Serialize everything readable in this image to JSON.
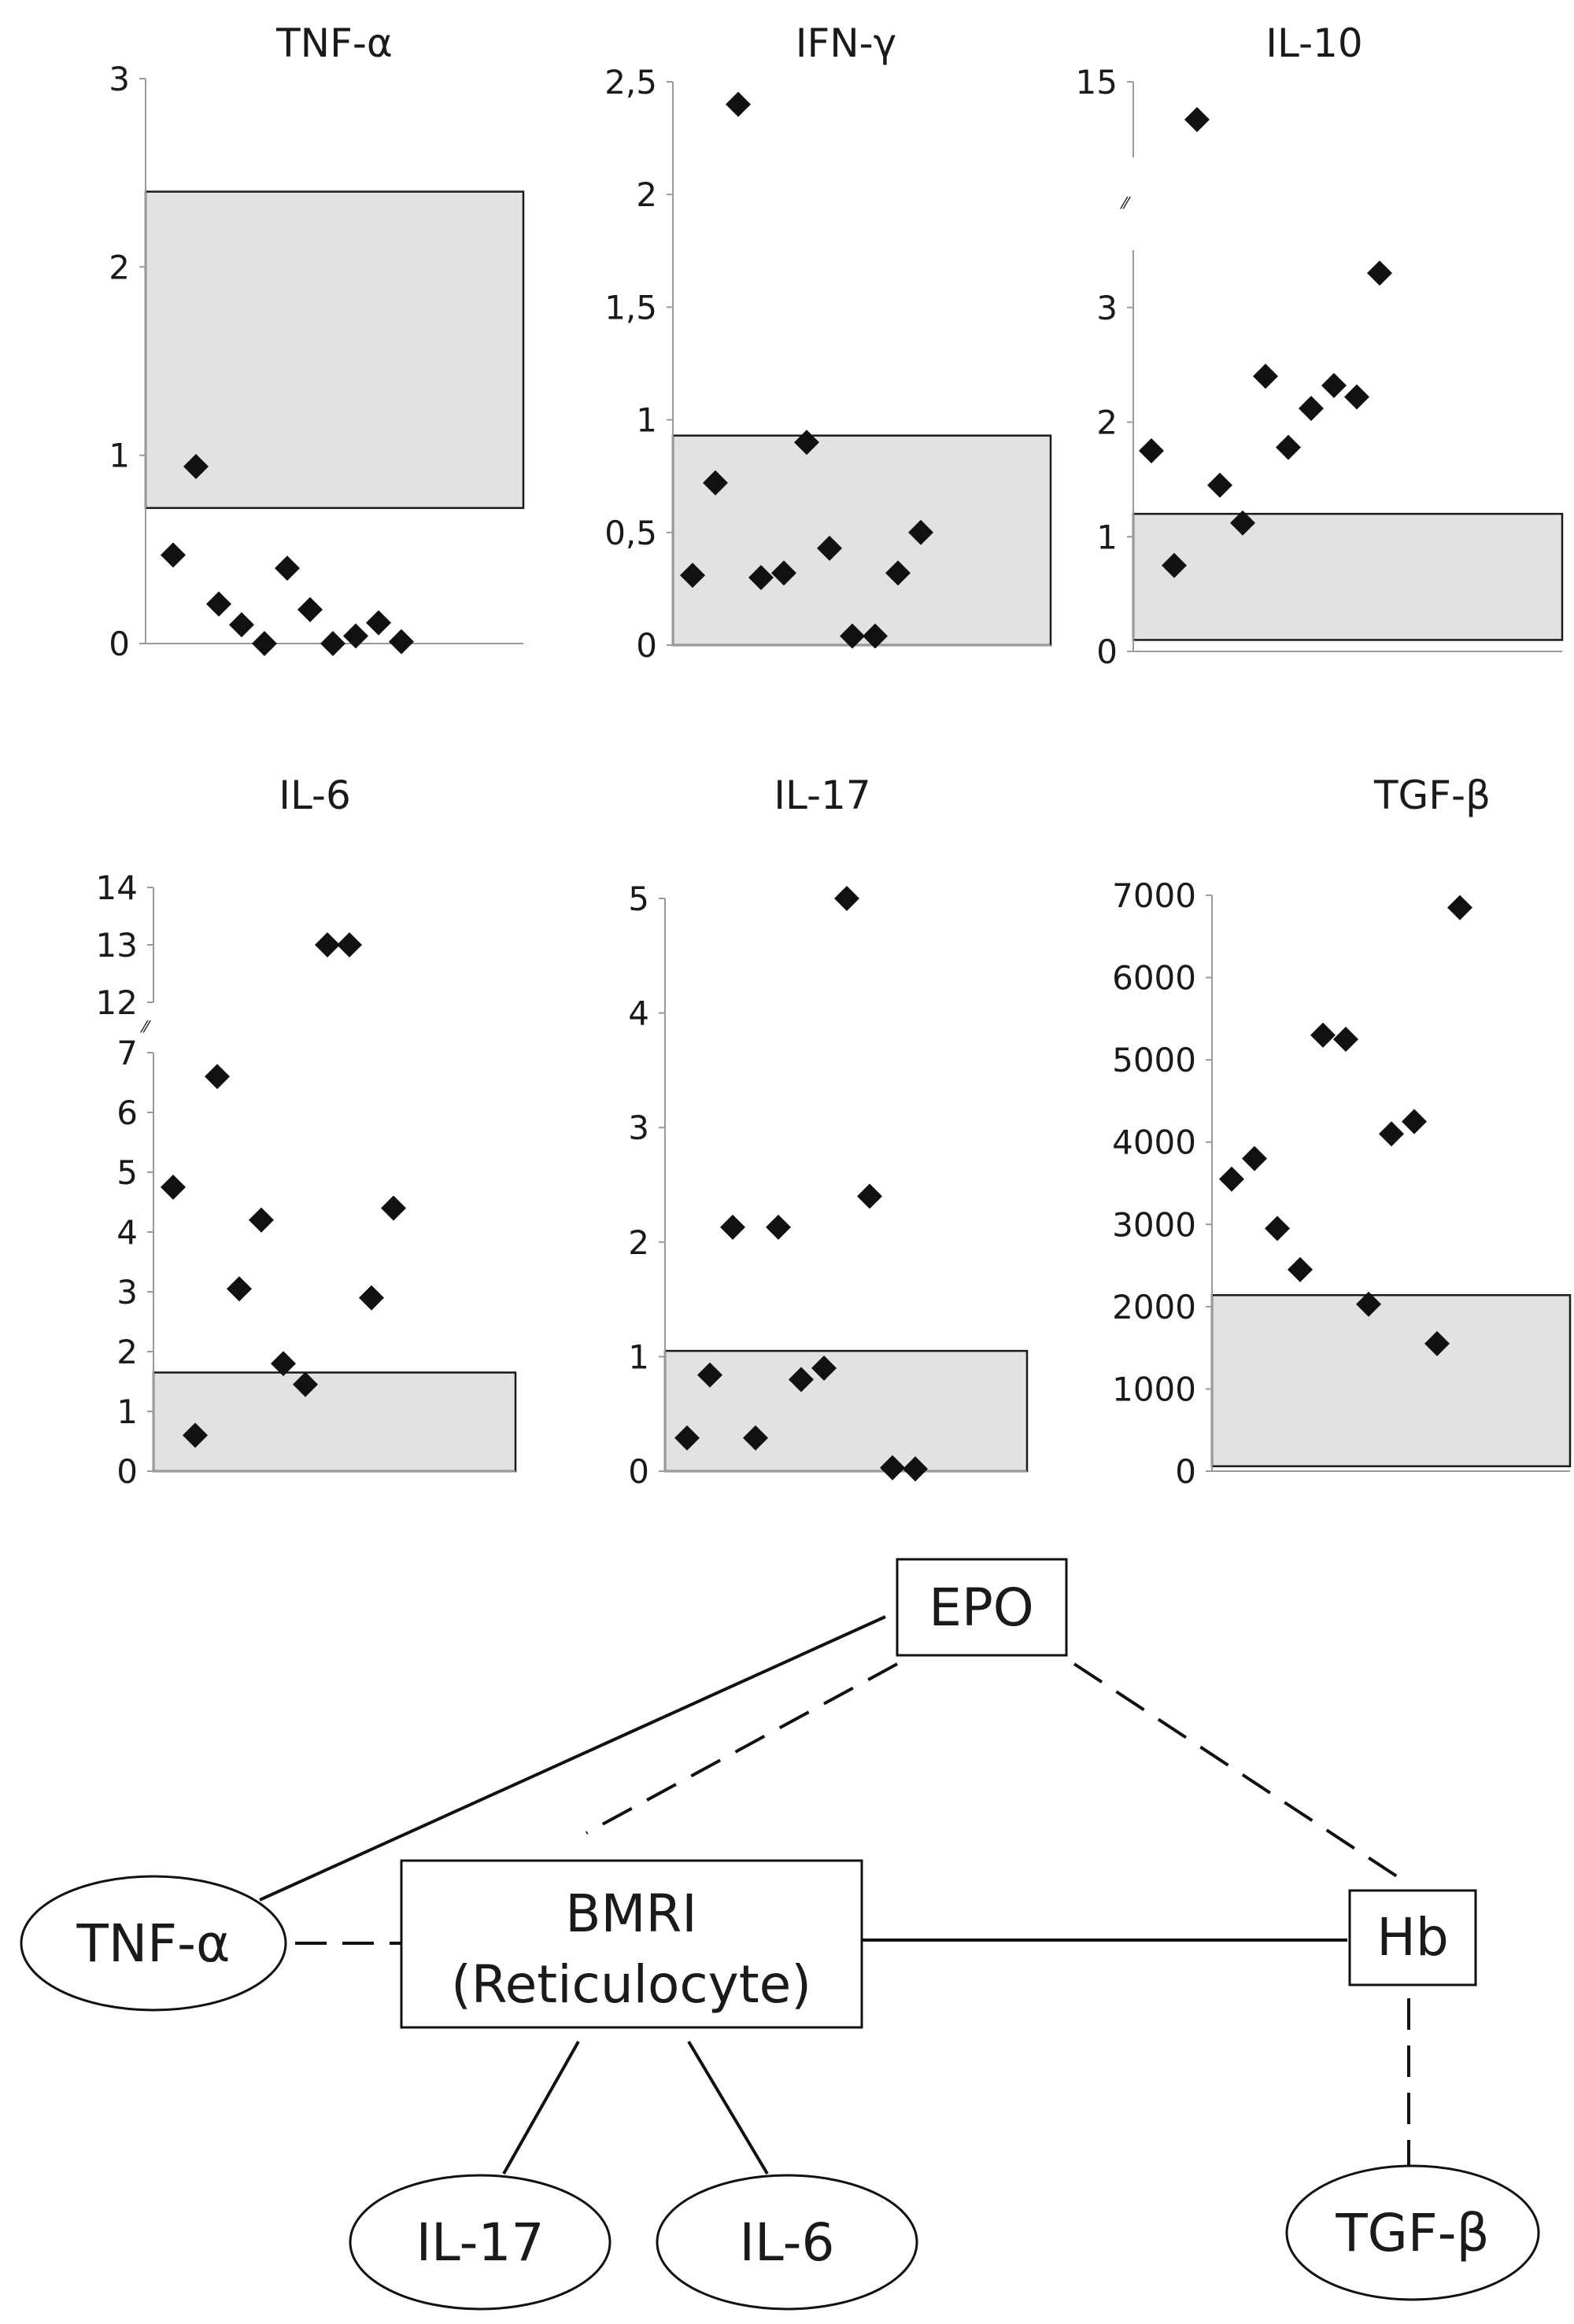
{
  "chart_data": [
    {
      "type": "scatter",
      "title": "TNF-α",
      "ylim": [
        0,
        3
      ],
      "ytick_labels": [
        "0",
        "1",
        "2",
        "3"
      ],
      "yticks": [
        0,
        1,
        2,
        3
      ],
      "axis_break": null,
      "reference_range": [
        0.72,
        2.4
      ],
      "points": [
        {
          "x": 1,
          "y": 0.47
        },
        {
          "x": 2,
          "y": 0.94
        },
        {
          "x": 3,
          "y": 0.21
        },
        {
          "x": 4,
          "y": 0.1
        },
        {
          "x": 5,
          "y": 0.0
        },
        {
          "x": 6,
          "y": 0.4
        },
        {
          "x": 7,
          "y": 0.18
        },
        {
          "x": 8,
          "y": 0.0
        },
        {
          "x": 9,
          "y": 0.04
        },
        {
          "x": 10,
          "y": 0.11
        },
        {
          "x": 11,
          "y": 0.01
        }
      ]
    },
    {
      "type": "scatter",
      "title": "IFN-γ",
      "ylim": [
        0,
        2.5
      ],
      "ytick_labels": [
        "0",
        "0,5",
        "1",
        "1,5",
        "2",
        "2,5"
      ],
      "yticks": [
        0,
        0.5,
        1,
        1.5,
        2,
        2.5
      ],
      "axis_break": null,
      "reference_range": [
        0,
        0.93
      ],
      "points": [
        {
          "x": 1,
          "y": 0.31
        },
        {
          "x": 2,
          "y": 0.72
        },
        {
          "x": 3,
          "y": 2.4
        },
        {
          "x": 4,
          "y": 0.3
        },
        {
          "x": 5,
          "y": 0.32
        },
        {
          "x": 6,
          "y": 0.9
        },
        {
          "x": 7,
          "y": 0.43
        },
        {
          "x": 8,
          "y": 0.04
        },
        {
          "x": 9,
          "y": 0.04
        },
        {
          "x": 10,
          "y": 0.32
        },
        {
          "x": 11,
          "y": 0.5
        }
      ]
    },
    {
      "type": "scatter",
      "title": "IL-10",
      "ylim": [
        0,
        15
      ],
      "ytick_labels": [
        "0",
        "1",
        "2",
        "3",
        "15"
      ],
      "yticks": [
        0,
        1,
        2,
        3,
        15
      ],
      "axis_break": {
        "below": 3.5,
        "above": 15
      },
      "reference_range": [
        0.1,
        1.2
      ],
      "points": [
        {
          "x": 1,
          "y": 1.75
        },
        {
          "x": 2,
          "y": 0.75
        },
        {
          "x": 3,
          "y": 14.5
        },
        {
          "x": 4,
          "y": 1.45
        },
        {
          "x": 5,
          "y": 1.12
        },
        {
          "x": 6,
          "y": 2.4
        },
        {
          "x": 7,
          "y": 1.78
        },
        {
          "x": 8,
          "y": 2.12
        },
        {
          "x": 9,
          "y": 2.32
        },
        {
          "x": 10,
          "y": 2.22
        },
        {
          "x": 11,
          "y": 3.3
        }
      ]
    },
    {
      "type": "scatter",
      "title": "IL-6",
      "ylim": [
        0,
        14
      ],
      "ytick_labels": [
        "0",
        "1",
        "2",
        "3",
        "4",
        "5",
        "6",
        "7",
        "12",
        "13",
        "14"
      ],
      "yticks": [
        0,
        1,
        2,
        3,
        4,
        5,
        6,
        7,
        12,
        13,
        14
      ],
      "axis_break": {
        "below": 7,
        "above": 12
      },
      "reference_range": [
        0,
        1.65
      ],
      "points": [
        {
          "x": 1,
          "y": 4.75
        },
        {
          "x": 2,
          "y": 0.6
        },
        {
          "x": 3,
          "y": 6.6
        },
        {
          "x": 4,
          "y": 3.05
        },
        {
          "x": 5,
          "y": 4.2
        },
        {
          "x": 6,
          "y": 1.8
        },
        {
          "x": 7,
          "y": 1.45
        },
        {
          "x": 8,
          "y": 13.0
        },
        {
          "x": 9,
          "y": 13.0
        },
        {
          "x": 10,
          "y": 2.9
        },
        {
          "x": 11,
          "y": 4.4
        }
      ]
    },
    {
      "type": "scatter",
      "title": "IL-17",
      "ylim": [
        0,
        5
      ],
      "ytick_labels": [
        "0",
        "1",
        "2",
        "3",
        "4",
        "5"
      ],
      "yticks": [
        0,
        1,
        2,
        3,
        4,
        5
      ],
      "axis_break": null,
      "reference_range": [
        0,
        1.05
      ],
      "points": [
        {
          "x": 1,
          "y": 0.29
        },
        {
          "x": 2,
          "y": 0.84
        },
        {
          "x": 3,
          "y": 2.13
        },
        {
          "x": 4,
          "y": 0.29
        },
        {
          "x": 5,
          "y": 2.13
        },
        {
          "x": 6,
          "y": 0.8
        },
        {
          "x": 7,
          "y": 0.9
        },
        {
          "x": 8,
          "y": 5.0
        },
        {
          "x": 9,
          "y": 2.4
        },
        {
          "x": 10,
          "y": 0.03
        },
        {
          "x": 11,
          "y": 0.02
        }
      ]
    },
    {
      "type": "scatter",
      "title": "TGF-β",
      "ylim": [
        0,
        7000
      ],
      "ytick_labels": [
        "0",
        "1000",
        "2000",
        "3000",
        "4000",
        "5000",
        "6000",
        "7000"
      ],
      "yticks": [
        0,
        1000,
        2000,
        3000,
        4000,
        5000,
        6000,
        7000
      ],
      "axis_break": null,
      "reference_range": [
        60,
        2140
      ],
      "points": [
        {
          "x": 1,
          "y": 3550
        },
        {
          "x": 2,
          "y": 3800
        },
        {
          "x": 3,
          "y": 2950
        },
        {
          "x": 4,
          "y": 2450
        },
        {
          "x": 5,
          "y": 5300
        },
        {
          "x": 6,
          "y": 5250
        },
        {
          "x": 7,
          "y": 2030
        },
        {
          "x": 8,
          "y": 4100
        },
        {
          "x": 9,
          "y": 4250
        },
        {
          "x": 10,
          "y": 1550
        },
        {
          "x": 11,
          "y": 6850
        }
      ]
    }
  ],
  "diagram": {
    "nodes": [
      {
        "id": "epo",
        "label": "EPO",
        "shape": "box"
      },
      {
        "id": "bmri",
        "label": "BMRI",
        "sublabel": "(Reticulocyte)",
        "shape": "box"
      },
      {
        "id": "hb",
        "label": "Hb",
        "shape": "box"
      },
      {
        "id": "tnf",
        "label": "TNF-α",
        "shape": "ellipse"
      },
      {
        "id": "il17",
        "label": "IL-17",
        "shape": "ellipse"
      },
      {
        "id": "il6",
        "label": "IL-6",
        "shape": "ellipse"
      },
      {
        "id": "tgf",
        "label": "TGF-β",
        "shape": "ellipse"
      }
    ],
    "edges": [
      {
        "from": "epo",
        "to": "tnf",
        "style": "solid"
      },
      {
        "from": "epo",
        "to": "bmri",
        "style": "dashed"
      },
      {
        "from": "epo",
        "to": "hb",
        "style": "dashed"
      },
      {
        "from": "tnf",
        "to": "bmri",
        "style": "dashed"
      },
      {
        "from": "bmri",
        "to": "hb",
        "style": "solid"
      },
      {
        "from": "bmri",
        "to": "il17",
        "style": "solid"
      },
      {
        "from": "bmri",
        "to": "il6",
        "style": "solid"
      },
      {
        "from": "hb",
        "to": "tgf",
        "style": "dashed"
      }
    ]
  }
}
